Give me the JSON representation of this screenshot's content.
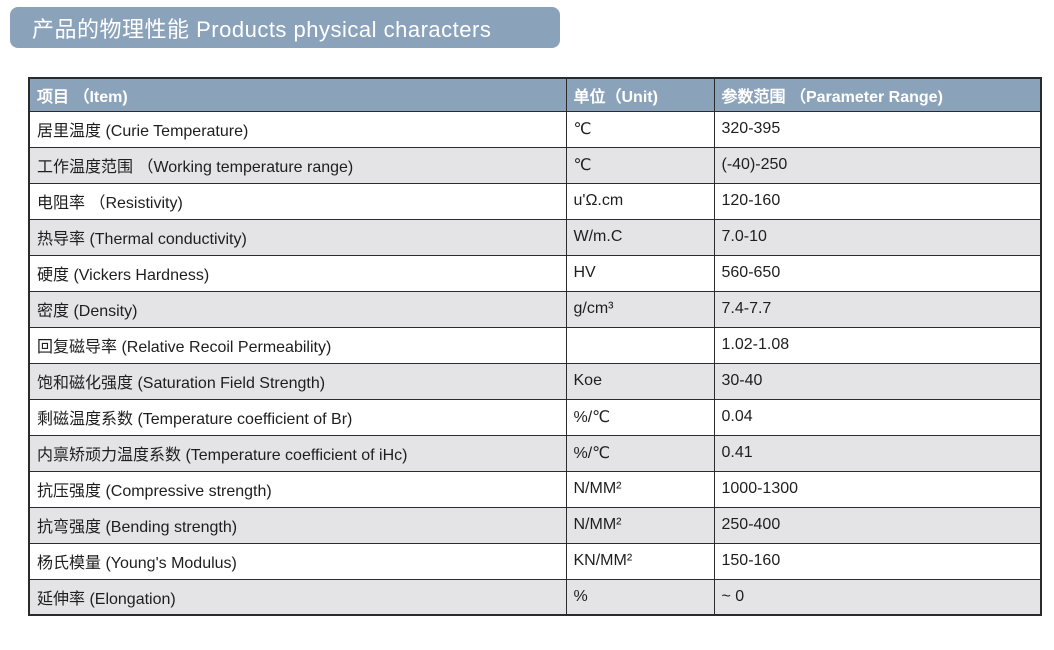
{
  "banner": {
    "title": "产品的物理性能 Products physical characters",
    "background_color": "#8ba3ba",
    "text_color": "#ffffff"
  },
  "table": {
    "header_background": "#8ba3ba",
    "stripe_color": "#e4e4e6",
    "border_color": "#2b2b2b",
    "headers": {
      "item": "项目 （Item)",
      "unit": "单位（Unit)",
      "range": "参数范围 （Parameter Range)"
    },
    "rows": [
      {
        "item": "居里温度 (Curie Temperature)",
        "unit": "℃",
        "range": "320-395"
      },
      {
        "item": "工作温度范围 （Working temperature range)",
        "unit": "℃",
        "range": "(-40)-250"
      },
      {
        "item": "电阻率 （Resistivity)",
        "unit": "u'Ω.cm",
        "range": "120-160"
      },
      {
        "item": "热导率 (Thermal conductivity)",
        "unit": "W/m.C",
        "range": "7.0-10"
      },
      {
        "item": "硬度 (Vickers Hardness)",
        "unit": "HV",
        "range": "560-650"
      },
      {
        "item": "密度 (Density)",
        "unit": "g/cm³",
        "range": "7.4-7.7"
      },
      {
        "item": "回复磁导率 (Relative Recoil Permeability)",
        "unit": "",
        "range": "1.02-1.08"
      },
      {
        "item": "饱和磁化强度 (Saturation Field Strength)",
        "unit": "Koe",
        "range": "30-40"
      },
      {
        "item": "剩磁温度系数 (Temperature coefficient of Br)",
        "unit": "%/℃",
        "range": "0.04"
      },
      {
        "item": "内禀矫顽力温度系数 (Temperature coefficient of iHc)",
        "unit": "%/℃",
        "range": "0.41"
      },
      {
        "item": "抗压强度 (Compressive strength)",
        "unit": "N/MM²",
        "range": "1000-1300"
      },
      {
        "item": "抗弯强度 (Bending strength)",
        "unit": "N/MM²",
        "range": "250-400"
      },
      {
        "item": "杨氏模量 (Young's Modulus)",
        "unit": "KN/MM²",
        "range": "150-160"
      },
      {
        "item": "延伸率 (Elongation)",
        "unit": "%",
        "range": "~ 0"
      }
    ]
  }
}
